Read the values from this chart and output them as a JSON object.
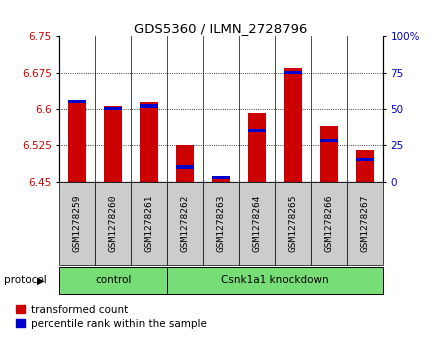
{
  "title": "GDS5360 / ILMN_2728796",
  "samples": [
    "GSM1278259",
    "GSM1278260",
    "GSM1278261",
    "GSM1278262",
    "GSM1278263",
    "GSM1278264",
    "GSM1278265",
    "GSM1278266",
    "GSM1278267"
  ],
  "red_values": [
    6.615,
    6.605,
    6.615,
    6.525,
    6.455,
    6.592,
    6.685,
    6.565,
    6.515
  ],
  "blue_values_pct": [
    55,
    50,
    52,
    10,
    3,
    35,
    75,
    28,
    15
  ],
  "ylim_left": [
    6.45,
    6.75
  ],
  "ylim_right": [
    0,
    100
  ],
  "yticks_left": [
    6.45,
    6.525,
    6.6,
    6.675,
    6.75
  ],
  "yticks_right": [
    0,
    25,
    50,
    75,
    100
  ],
  "protocol_groups": [
    {
      "label": "control",
      "start": 0,
      "end": 3
    },
    {
      "label": "Csnk1a1 knockdown",
      "start": 3,
      "end": 9
    }
  ],
  "protocol_label": "protocol",
  "bar_width": 0.5,
  "red_color": "#cc0000",
  "blue_color": "#0000cc",
  "green_color": "#77dd77",
  "bg_color": "#cccccc",
  "legend_red": "transformed count",
  "legend_blue": "percentile rank within the sample",
  "base_value": 6.45
}
